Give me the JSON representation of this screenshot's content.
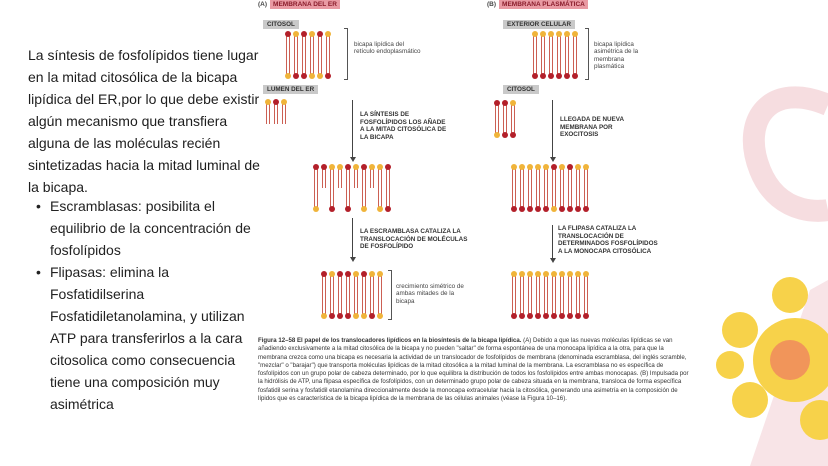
{
  "intro": "La síntesis de fosfolípidos tiene lugar en la mitad citosólica de la bicapa lipídica del ER,por  lo que debe existir algún mecanismo que transfiera alguna de las moléculas recién sintetizadas hacia la mitad luminal de la bicapa.",
  "bullets": [
    "Escramblasas: posibilita el equilibrio de la concentración de fosfolípidos",
    "Flipasas: elimina la Fosfatidilserina Fosfatidiletanolamina, y utilizan ATP para transferirlos a la cara citosolica como consecuencia tiene una composición muy asimétrica"
  ],
  "figure": {
    "a": {
      "letter": "(A)",
      "title": "MEMBRANA DEL ER",
      "top_label": "CITOSOL",
      "bottom_label": "LUMEN DEL ER",
      "bilayer_label": "bicapa lipídica del retículo endoplasmático",
      "step1": "LA SÍNTESIS DE FOSFOLÍPIDOS LOS AÑADE A LA MITAD CITOSÓLICA DE LA BICAPA",
      "step2": "LA ESCRAMBLASA CATALIZA LA TRANSLOCACIÓN DE MOLÉCULAS DE FOSFOLÍPIDO",
      "result_label": "crecimiento simétrico de ambas mitades de la bicapa"
    },
    "b": {
      "letter": "(B)",
      "title": "MEMBRANA PLASMÁTICA",
      "top_label": "EXTERIOR CELULAR",
      "bottom_label": "CITOSOL",
      "bilayer_label": "bicapa lipídica asimétrica de la membrana plasmática",
      "step1": "LLEGADA DE NUEVA MEMBRANA POR EXOCITOSIS",
      "step2": "LA FLIPASA CATALIZA LA TRANSLOCACIÓN DE DETERMINADOS FOSFOLÍPIDOS A LA MONOCAPA CITOSÓLICA"
    },
    "caption_title": "Figura 12–58 El papel de los translocadores lipídicos en la biosíntesis de la bicapa lipídica.",
    "caption_body": " (A) Debido a que las nuevas moléculas lipídicas se van añadiendo exclusivamente a la mitad citosólica de la bicapa y no pueden \"saltar\" de forma espontánea de una monocapa lipídica a la otra, para que la membrana crezca como una bicapa es necesaria la actividad de un translocador de fosfolípidos de membrana (denominada escramblasa, del inglés scramble, \"mezclar\" o \"barajar\") que transporta moléculas lipídicas de la mitad citosólica a la mitad luminal de la membrana. La escramblasa no es específica de fosfolípidos con un grupo polar de cabeza determinado, por lo que equilibra la distribución de todos los fosfolípidos entre ambas monocapas. (B) Impulsada por la hidrólisis de ATP, una flipasa específica de fosfolípidos, con un determinado grupo polar de cabeza situada en la membrana, transloca de forma específica fosfatidil serina y fosfatidil etanolamina direccionalmente desde la monocapa extracelular hacia la citosólica, generando una asimetría en la composición de lípidos que es característica de la bicapa lipídica de la membrana de las células animales (véase la Figura 10–16)."
  },
  "bilayers": {
    "a1": {
      "top": "RYRYRY",
      "bottom": "YRRYYR"
    },
    "a2": {
      "top": "YRY",
      "bottom": ""
    },
    "a3": {
      "top": "RRYYRYRYYR",
      "bottom": "Y.R.R.Y.YR"
    },
    "a4": {
      "top": "RYRRYRYY",
      "bottom": "YRRRYYRY"
    },
    "b1": {
      "top": "YYYYYY",
      "bottom": "RRRRRR"
    },
    "b2": {
      "top": "RRY",
      "bottom": "YRR"
    },
    "b3": {
      "top": "YYYYYRYRYY",
      "bottom": "RRRRRYRRRR"
    },
    "b4": {
      "top": "YYYYYYYYYY",
      "bottom": "RRRRRRRRRR"
    }
  },
  "colors": {
    "head_dark": "#b3202a",
    "head_light": "#f0b43a",
    "tail": "#c0392b",
    "label_tag": "#e99aa3",
    "deco_pink": "#f6dde0",
    "deco_yellow": "#f7d24a",
    "deco_orange": "#f1955a"
  }
}
